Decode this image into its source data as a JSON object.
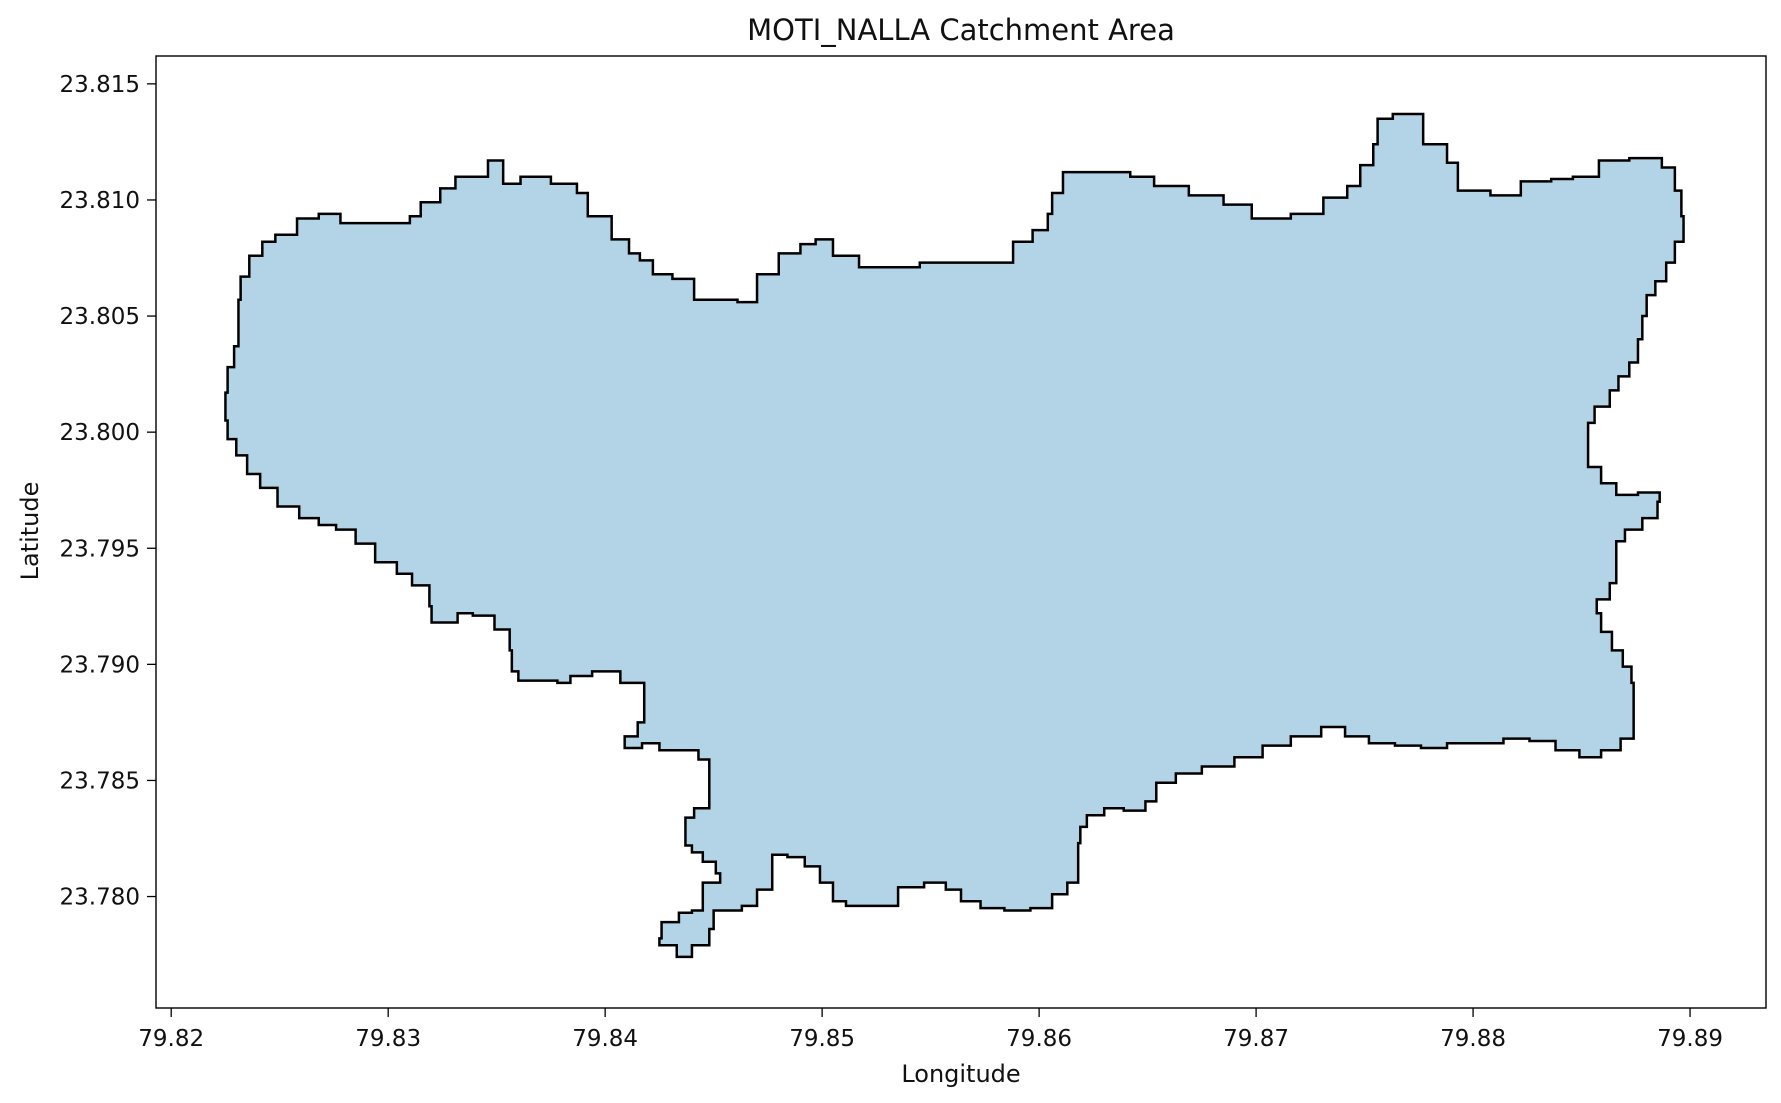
{
  "chart_data": {
    "type": "map",
    "title": "MOTI_NALLA Catchment Area",
    "xlabel": "Longitude",
    "ylabel": "Latitude",
    "xlim": [
      79.8193,
      79.8935
    ],
    "ylim": [
      23.7752,
      23.8162
    ],
    "x_ticks": [
      79.82,
      79.83,
      79.84,
      79.85,
      79.86,
      79.87,
      79.88,
      79.89
    ],
    "x_tick_labels": [
      "79.82",
      "79.83",
      "79.84",
      "79.85",
      "79.86",
      "79.87",
      "79.88",
      "79.89"
    ],
    "y_ticks": [
      23.78,
      23.785,
      23.79,
      23.795,
      23.8,
      23.805,
      23.81,
      23.815
    ],
    "y_tick_labels": [
      "23.780",
      "23.785",
      "23.790",
      "23.795",
      "23.800",
      "23.805",
      "23.810",
      "23.815"
    ],
    "grid": false,
    "fill_color": "#b3d4e6",
    "edge_color": "#000000",
    "polygon": [
      [
        79.8242,
        23.8082
      ],
      [
        79.8248,
        23.8085
      ],
      [
        79.8258,
        23.8092
      ],
      [
        79.8268,
        23.8094
      ],
      [
        79.8278,
        23.809
      ],
      [
        79.829,
        23.809
      ],
      [
        79.8301,
        23.809
      ],
      [
        79.831,
        23.8093
      ],
      [
        79.8315,
        23.8099
      ],
      [
        79.8324,
        23.8105
      ],
      [
        79.8331,
        23.811
      ],
      [
        79.8341,
        23.811
      ],
      [
        79.8346,
        23.8117
      ],
      [
        79.8353,
        23.8107
      ],
      [
        79.8361,
        23.811
      ],
      [
        79.8375,
        23.8107
      ],
      [
        79.8387,
        23.8103
      ],
      [
        79.8392,
        23.8093
      ],
      [
        79.8403,
        23.8083
      ],
      [
        79.8411,
        23.8077
      ],
      [
        79.8416,
        23.8074
      ],
      [
        79.8422,
        23.8068
      ],
      [
        79.8431,
        23.8066
      ],
      [
        79.8441,
        23.8057
      ],
      [
        79.8461,
        23.8056
      ],
      [
        79.847,
        23.8068
      ],
      [
        79.848,
        23.8077
      ],
      [
        79.849,
        23.8081
      ],
      [
        79.8497,
        23.8083
      ],
      [
        79.8505,
        23.8076
      ],
      [
        79.8517,
        23.8071
      ],
      [
        79.8532,
        23.8071
      ],
      [
        79.8545,
        23.8073
      ],
      [
        79.856,
        23.8073
      ],
      [
        79.8575,
        23.8073
      ],
      [
        79.8588,
        23.8082
      ],
      [
        79.8597,
        23.8087
      ],
      [
        79.8604,
        23.8094
      ],
      [
        79.8606,
        23.8103
      ],
      [
        79.8611,
        23.8112
      ],
      [
        79.8628,
        23.8112
      ],
      [
        79.8642,
        23.811
      ],
      [
        79.8653,
        23.8106
      ],
      [
        79.8669,
        23.8102
      ],
      [
        79.8685,
        23.8098
      ],
      [
        79.8698,
        23.8092
      ],
      [
        79.8716,
        23.8094
      ],
      [
        79.8731,
        23.8101
      ],
      [
        79.8742,
        23.8106
      ],
      [
        79.8748,
        23.8115
      ],
      [
        79.8754,
        23.8124
      ],
      [
        79.8756,
        23.8135
      ],
      [
        79.8763,
        23.8137
      ],
      [
        79.8777,
        23.8124
      ],
      [
        79.8788,
        23.8116
      ],
      [
        79.8793,
        23.8104
      ],
      [
        79.8808,
        23.8102
      ],
      [
        79.8822,
        23.8108
      ],
      [
        79.8836,
        23.8109
      ],
      [
        79.8846,
        23.811
      ],
      [
        79.8858,
        23.8117
      ],
      [
        79.8872,
        23.8118
      ],
      [
        79.8887,
        23.8114
      ],
      [
        79.8893,
        23.8104
      ],
      [
        79.8896,
        23.8093
      ],
      [
        79.8897,
        23.8082
      ],
      [
        79.8893,
        23.8073
      ],
      [
        79.8889,
        23.8065
      ],
      [
        79.8884,
        23.8059
      ],
      [
        79.888,
        23.805
      ],
      [
        79.8878,
        23.804
      ],
      [
        79.8876,
        23.803
      ],
      [
        79.8872,
        23.8024
      ],
      [
        79.8867,
        23.8018
      ],
      [
        79.8863,
        23.8011
      ],
      [
        79.8856,
        23.8004
      ],
      [
        79.8853,
        23.7995
      ],
      [
        79.8853,
        23.7985
      ],
      [
        79.8859,
        23.7978
      ],
      [
        79.8866,
        23.7973
      ],
      [
        79.8876,
        23.7974
      ],
      [
        79.8886,
        23.797
      ],
      [
        79.8885,
        23.7963
      ],
      [
        79.8878,
        23.7958
      ],
      [
        79.887,
        23.7953
      ],
      [
        79.8866,
        23.7946
      ],
      [
        79.8866,
        23.7935
      ],
      [
        79.8863,
        23.7928
      ],
      [
        79.8857,
        23.7922
      ],
      [
        79.8859,
        23.7914
      ],
      [
        79.8864,
        23.7906
      ],
      [
        79.8869,
        23.7899
      ],
      [
        79.8873,
        23.7892
      ],
      [
        79.8874,
        23.788
      ],
      [
        79.8874,
        23.7868
      ],
      [
        79.8868,
        23.7863
      ],
      [
        79.8859,
        23.786
      ],
      [
        79.8849,
        23.7863
      ],
      [
        79.8838,
        23.7867
      ],
      [
        79.8826,
        23.7868
      ],
      [
        79.8814,
        23.7866
      ],
      [
        79.8802,
        23.7866
      ],
      [
        79.8788,
        23.7864
      ],
      [
        79.8776,
        23.7865
      ],
      [
        79.8764,
        23.7866
      ],
      [
        79.8752,
        23.7869
      ],
      [
        79.8741,
        23.7873
      ],
      [
        79.873,
        23.7869
      ],
      [
        79.8716,
        23.7865
      ],
      [
        79.8703,
        23.786
      ],
      [
        79.869,
        23.7856
      ],
      [
        79.8675,
        23.7853
      ],
      [
        79.8663,
        23.7849
      ],
      [
        79.8654,
        23.7841
      ],
      [
        79.8649,
        23.7837
      ],
      [
        79.8639,
        23.7838
      ],
      [
        79.863,
        23.7835
      ],
      [
        79.8622,
        23.783
      ],
      [
        79.8619,
        23.7823
      ],
      [
        79.8618,
        23.7813
      ],
      [
        79.8618,
        23.7806
      ],
      [
        79.8613,
        23.7801
      ],
      [
        79.8606,
        23.7795
      ],
      [
        79.8596,
        23.7794
      ],
      [
        79.8584,
        23.7795
      ],
      [
        79.8573,
        23.7798
      ],
      [
        79.8564,
        23.7803
      ],
      [
        79.8557,
        23.7806
      ],
      [
        79.8547,
        23.7804
      ],
      [
        79.8535,
        23.7796
      ],
      [
        79.8522,
        23.7796
      ],
      [
        79.8511,
        23.7798
      ],
      [
        79.8505,
        23.7806
      ],
      [
        79.8499,
        23.7813
      ],
      [
        79.8492,
        23.7817
      ],
      [
        79.8484,
        23.7818
      ],
      [
        79.8477,
        23.7812
      ],
      [
        79.8477,
        23.7803
      ],
      [
        79.847,
        23.7796
      ],
      [
        79.8463,
        23.7794
      ],
      [
        79.8452,
        23.7794
      ],
      [
        79.845,
        23.7786
      ],
      [
        79.8448,
        23.7779
      ],
      [
        79.844,
        23.7774
      ],
      [
        79.8433,
        23.7779
      ],
      [
        79.8425,
        23.7782
      ],
      [
        79.8426,
        23.7789
      ],
      [
        79.8434,
        23.7793
      ],
      [
        79.844,
        23.7794
      ],
      [
        79.8445,
        23.7806
      ],
      [
        79.8453,
        23.781
      ],
      [
        79.8451,
        23.7815
      ],
      [
        79.8445,
        23.7819
      ],
      [
        79.844,
        23.7822
      ],
      [
        79.8437,
        23.7829
      ],
      [
        79.8437,
        23.7834
      ],
      [
        79.8441,
        23.7838
      ],
      [
        79.8448,
        23.7841
      ],
      [
        79.8448,
        23.7851
      ],
      [
        79.8448,
        23.7859
      ],
      [
        79.8443,
        23.7863
      ],
      [
        79.8435,
        23.7863
      ],
      [
        79.8425,
        23.7866
      ],
      [
        79.8417,
        23.7864
      ],
      [
        79.8409,
        23.7869
      ],
      [
        79.8415,
        23.7875
      ],
      [
        79.8418,
        23.7883
      ],
      [
        79.8418,
        23.7892
      ],
      [
        79.8407,
        23.7897
      ],
      [
        79.8394,
        23.7895
      ],
      [
        79.8384,
        23.7892
      ],
      [
        79.8378,
        23.7893
      ],
      [
        79.8367,
        23.7893
      ],
      [
        79.836,
        23.7897
      ],
      [
        79.8357,
        23.7906
      ],
      [
        79.8356,
        23.7915
      ],
      [
        79.8349,
        23.7921
      ],
      [
        79.8339,
        23.7922
      ],
      [
        79.8332,
        23.7918
      ],
      [
        79.8323,
        23.7918
      ],
      [
        79.832,
        23.7925
      ],
      [
        79.8319,
        23.7934
      ],
      [
        79.8311,
        23.7939
      ],
      [
        79.8304,
        23.7944
      ],
      [
        79.8294,
        23.7952
      ],
      [
        79.8285,
        23.7958
      ],
      [
        79.8276,
        23.796
      ],
      [
        79.8268,
        23.7963
      ],
      [
        79.8259,
        23.7968
      ],
      [
        79.8249,
        23.7976
      ],
      [
        79.8241,
        23.7982
      ],
      [
        79.8235,
        23.799
      ],
      [
        79.823,
        23.7997
      ],
      [
        79.8226,
        23.8005
      ],
      [
        79.8225,
        23.8017
      ],
      [
        79.8226,
        23.8028
      ],
      [
        79.8229,
        23.8037
      ],
      [
        79.8231,
        23.8046
      ],
      [
        79.8231,
        23.8057
      ],
      [
        79.8232,
        23.8067
      ],
      [
        79.8236,
        23.8076
      ]
    ]
  }
}
